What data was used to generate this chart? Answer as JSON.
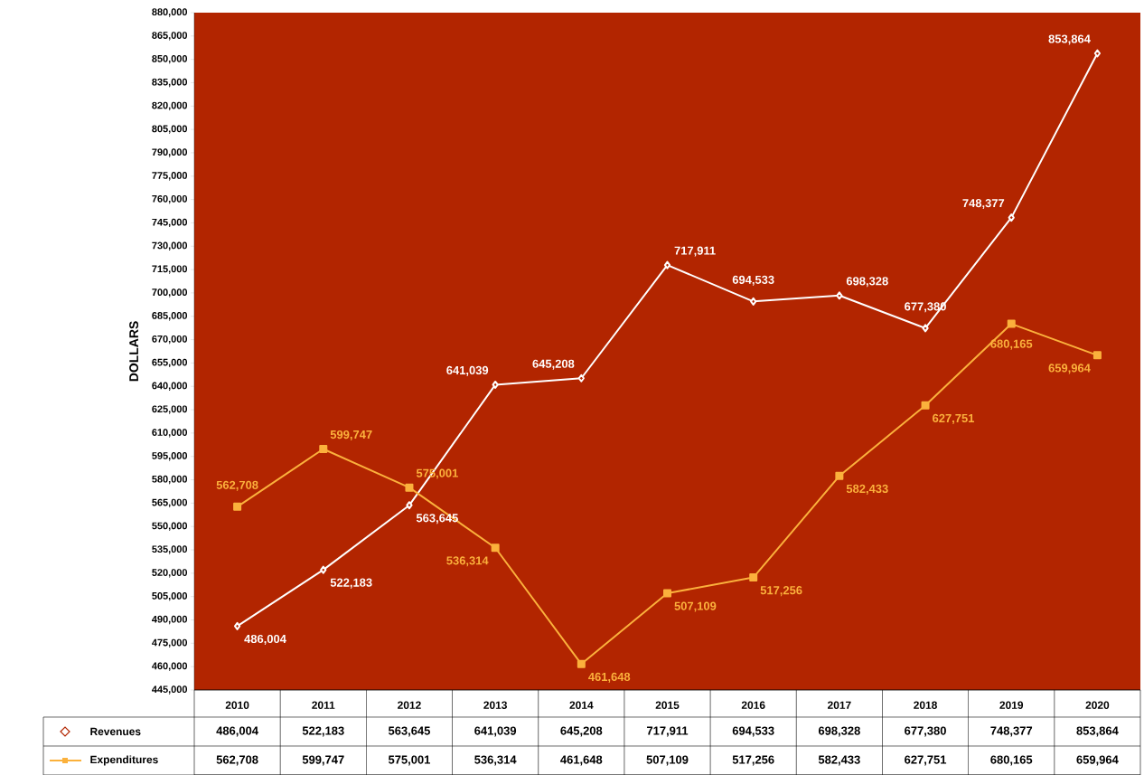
{
  "chart_data": {
    "type": "line",
    "ylabel": "DOLLARS",
    "categories": [
      "2010",
      "2011",
      "2012",
      "2013",
      "2014",
      "2015",
      "2016",
      "2017",
      "2018",
      "2019",
      "2020"
    ],
    "series": [
      {
        "name": "Revenues",
        "color": "#ffffff",
        "marker": "diamond",
        "values": [
          486004,
          522183,
          563645,
          641039,
          645208,
          717911,
          694533,
          698328,
          677380,
          748377,
          853864
        ],
        "value_labels": [
          "486,004",
          "522,183",
          "563,645",
          "641,039",
          "645,208",
          "717,911",
          "694,533",
          "698,328",
          "677,380",
          "748,377",
          "853,864"
        ]
      },
      {
        "name": "Expenditures",
        "color": "#fbb13c",
        "marker": "square",
        "values": [
          562708,
          599747,
          575001,
          536314,
          461648,
          507109,
          517256,
          582433,
          627751,
          680165,
          659964
        ],
        "value_labels": [
          "562,708",
          "599,747",
          "575,001",
          "536,314",
          "461,648",
          "507,109",
          "517,256",
          "582,433",
          "627,751",
          "680,165",
          "659,964"
        ]
      }
    ],
    "ylim": [
      445000,
      880000
    ],
    "yticks": [
      {
        "value": 445000,
        "label": "445,000"
      },
      {
        "value": 460000,
        "label": "460,000"
      },
      {
        "value": 475000,
        "label": "475,000"
      },
      {
        "value": 490000,
        "label": "490,000"
      },
      {
        "value": 505000,
        "label": "505,000"
      },
      {
        "value": 520000,
        "label": "520,000"
      },
      {
        "value": 535000,
        "label": "535,000"
      },
      {
        "value": 550000,
        "label": "550,000"
      },
      {
        "value": 565000,
        "label": "565,000"
      },
      {
        "value": 580000,
        "label": "580,000"
      },
      {
        "value": 595000,
        "label": "595,000"
      },
      {
        "value": 610000,
        "label": "610,000"
      },
      {
        "value": 625000,
        "label": "625,000"
      },
      {
        "value": 640000,
        "label": "640,000"
      },
      {
        "value": 655000,
        "label": "655,000"
      },
      {
        "value": 670000,
        "label": "670,000"
      },
      {
        "value": 685000,
        "label": "685,000"
      },
      {
        "value": 700000,
        "label": "700,000"
      },
      {
        "value": 715000,
        "label": "715,000"
      },
      {
        "value": 730000,
        "label": "730,000"
      },
      {
        "value": 745000,
        "label": "745,000"
      },
      {
        "value": 760000,
        "label": "760,000"
      },
      {
        "value": 775000,
        "label": "775,000"
      },
      {
        "value": 790000,
        "label": "790,000"
      },
      {
        "value": 805000,
        "label": "805,000"
      },
      {
        "value": 820000,
        "label": "820,000"
      },
      {
        "value": 835000,
        "label": "835,000"
      },
      {
        "value": 850000,
        "label": "850,000"
      },
      {
        "value": 865000,
        "label": "865,000"
      },
      {
        "value": 880000,
        "label": "880,000"
      }
    ],
    "legend": "bottom",
    "grid": false
  }
}
